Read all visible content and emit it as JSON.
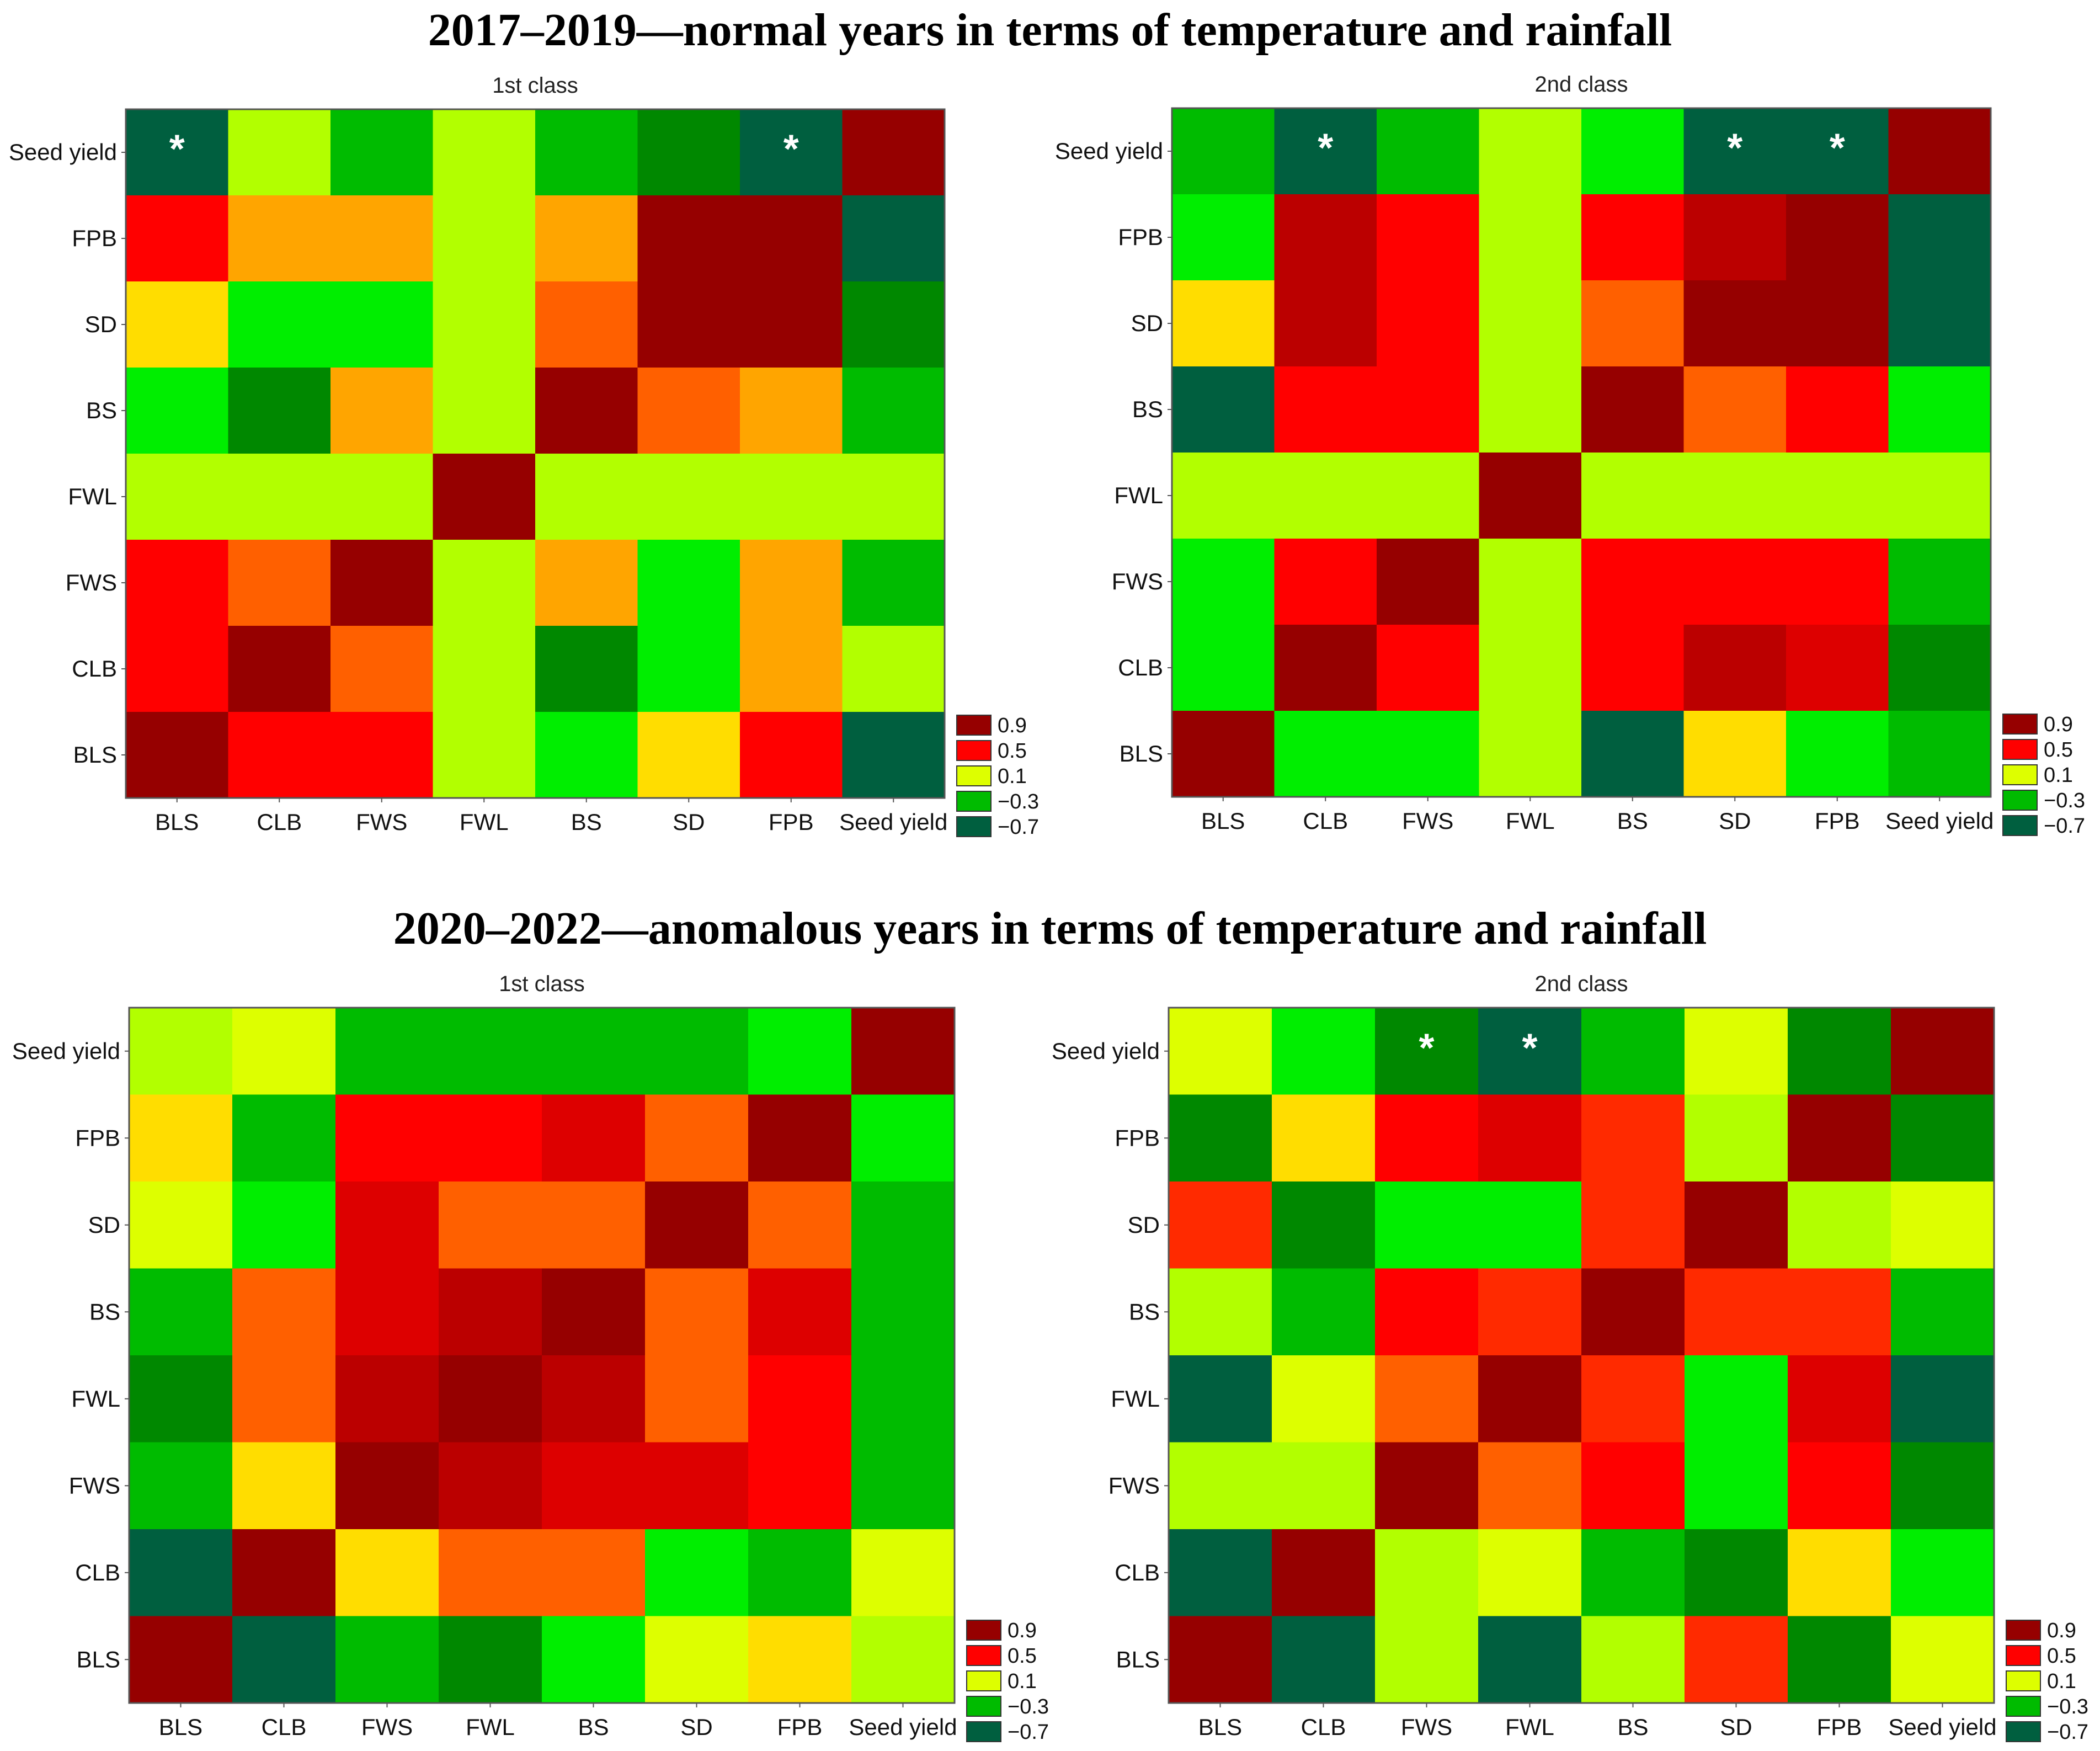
{
  "titles": [
    "2017–2019—normal years in terms of temperature and rainfall",
    "2020–2022—anomalous years in terms of temperature and rainfall"
  ],
  "colors": {
    "-0.7": "#005f3f",
    "-0.5": "#008800",
    "-0.3": "#00bb00",
    "-0.1": "#00ee00",
    "0.1": "#b2ff00",
    "0.2": "#ddff00",
    "0.3": "#ffdd00",
    "0.4": "#ffa500",
    "0.5": "#ff6000",
    "0.6": "#ff2a00",
    "0.7": "#ff0000",
    "0.8": "#dd0000",
    "0.85": "#bb0000",
    "0.9": "#960000"
  },
  "chart_data": [
    {
      "type": "heatmap",
      "title": "1st class",
      "period": "2017–2019",
      "x_labels": [
        "BLS",
        "CLB",
        "FWS",
        "FWL",
        "BS",
        "SD",
        "FPB",
        "Seed yield"
      ],
      "y_labels": [
        "Seed yield",
        "FPB",
        "SD",
        "BS",
        "FWL",
        "FWS",
        "CLB",
        "BLS"
      ],
      "values": [
        [
          -0.7,
          0.1,
          -0.3,
          0.1,
          -0.3,
          -0.5,
          -0.7,
          0.9
        ],
        [
          0.7,
          0.4,
          0.4,
          0.1,
          0.4,
          0.9,
          0.9,
          -0.7
        ],
        [
          0.3,
          -0.1,
          -0.1,
          0.1,
          0.5,
          0.9,
          0.9,
          -0.5
        ],
        [
          -0.1,
          -0.5,
          0.4,
          0.1,
          0.9,
          0.5,
          0.4,
          -0.3
        ],
        [
          0.1,
          0.1,
          0.1,
          0.9,
          0.1,
          0.1,
          0.1,
          0.1
        ],
        [
          0.7,
          0.5,
          0.9,
          0.1,
          0.4,
          -0.1,
          0.4,
          -0.3
        ],
        [
          0.7,
          0.9,
          0.5,
          0.1,
          -0.5,
          -0.1,
          0.4,
          0.1
        ],
        [
          0.9,
          0.7,
          0.7,
          0.1,
          -0.1,
          0.3,
          0.7,
          -0.7
        ]
      ],
      "significant": [
        [
          0,
          0
        ],
        [
          0,
          6
        ]
      ],
      "star_label": "*",
      "legend": [
        "0.9",
        "0.5",
        "0.1",
        "−0.3",
        "−0.7"
      ]
    },
    {
      "type": "heatmap",
      "title": "2nd class",
      "period": "2017–2019",
      "x_labels": [
        "BLS",
        "CLB",
        "FWS",
        "FWL",
        "BS",
        "SD",
        "FPB",
        "Seed yield"
      ],
      "y_labels": [
        "Seed yield",
        "FPB",
        "SD",
        "BS",
        "FWL",
        "FWS",
        "CLB",
        "BLS"
      ],
      "values": [
        [
          -0.3,
          -0.7,
          -0.3,
          0.1,
          -0.1,
          -0.7,
          -0.7,
          0.9
        ],
        [
          -0.1,
          0.85,
          0.7,
          0.1,
          0.7,
          0.85,
          0.9,
          -0.7
        ],
        [
          0.3,
          0.85,
          0.7,
          0.1,
          0.5,
          0.9,
          0.9,
          -0.7
        ],
        [
          -0.7,
          0.7,
          0.7,
          0.1,
          0.9,
          0.5,
          0.7,
          -0.1
        ],
        [
          0.1,
          0.1,
          0.1,
          0.9,
          0.1,
          0.1,
          0.1,
          0.1
        ],
        [
          -0.1,
          0.7,
          0.9,
          0.1,
          0.7,
          0.7,
          0.7,
          -0.3
        ],
        [
          -0.1,
          0.9,
          0.7,
          0.1,
          0.7,
          0.85,
          0.8,
          -0.5
        ],
        [
          0.9,
          -0.1,
          -0.1,
          0.1,
          -0.7,
          0.3,
          -0.1,
          -0.3
        ]
      ],
      "significant": [
        [
          0,
          1
        ],
        [
          0,
          5
        ],
        [
          0,
          6
        ]
      ],
      "star_label": "*",
      "legend": [
        "0.9",
        "0.5",
        "0.1",
        "−0.3",
        "−0.7"
      ]
    },
    {
      "type": "heatmap",
      "title": "1st class",
      "period": "2020–2022",
      "x_labels": [
        "BLS",
        "CLB",
        "FWS",
        "FWL",
        "BS",
        "SD",
        "FPB",
        "Seed yield"
      ],
      "y_labels": [
        "Seed yield",
        "FPB",
        "SD",
        "BS",
        "FWL",
        "FWS",
        "CLB",
        "BLS"
      ],
      "values": [
        [
          0.1,
          0.2,
          -0.3,
          -0.3,
          -0.3,
          -0.3,
          -0.1,
          0.9
        ],
        [
          0.3,
          -0.3,
          0.7,
          0.7,
          0.8,
          0.5,
          0.9,
          -0.1
        ],
        [
          0.2,
          -0.1,
          0.8,
          0.5,
          0.5,
          0.9,
          0.5,
          -0.3
        ],
        [
          -0.3,
          0.5,
          0.8,
          0.85,
          0.9,
          0.5,
          0.8,
          -0.3
        ],
        [
          -0.5,
          0.5,
          0.85,
          0.9,
          0.85,
          0.5,
          0.7,
          -0.3
        ],
        [
          -0.3,
          0.3,
          0.9,
          0.85,
          0.8,
          0.8,
          0.7,
          -0.3
        ],
        [
          -0.7,
          0.9,
          0.3,
          0.5,
          0.5,
          -0.1,
          -0.3,
          0.2
        ],
        [
          0.9,
          -0.7,
          -0.3,
          -0.5,
          -0.1,
          0.2,
          0.3,
          0.1
        ]
      ],
      "significant": [],
      "star_label": "*",
      "legend": [
        "0.9",
        "0.5",
        "0.1",
        "−0.3",
        "−0.7"
      ]
    },
    {
      "type": "heatmap",
      "title": "2nd class",
      "period": "2020–2022",
      "x_labels": [
        "BLS",
        "CLB",
        "FWS",
        "FWL",
        "BS",
        "SD",
        "FPB",
        "Seed yield"
      ],
      "y_labels": [
        "Seed yield",
        "FPB",
        "SD",
        "BS",
        "FWL",
        "FWS",
        "CLB",
        "BLS"
      ],
      "values": [
        [
          0.2,
          -0.1,
          -0.5,
          -0.7,
          -0.3,
          0.2,
          -0.5,
          0.9
        ],
        [
          -0.5,
          0.3,
          0.7,
          0.8,
          0.6,
          0.1,
          0.9,
          -0.5
        ],
        [
          0.6,
          -0.5,
          -0.1,
          -0.1,
          0.6,
          0.9,
          0.1,
          0.2
        ],
        [
          0.1,
          -0.3,
          0.7,
          0.6,
          0.9,
          0.6,
          0.6,
          -0.3
        ],
        [
          -0.7,
          0.2,
          0.5,
          0.9,
          0.6,
          -0.1,
          0.8,
          -0.7
        ],
        [
          0.1,
          0.1,
          0.9,
          0.5,
          0.7,
          -0.1,
          0.7,
          -0.5
        ],
        [
          -0.7,
          0.9,
          0.1,
          0.2,
          -0.3,
          -0.5,
          0.3,
          -0.1
        ],
        [
          0.9,
          -0.7,
          0.1,
          -0.7,
          0.1,
          0.6,
          -0.5,
          0.2
        ]
      ],
      "significant": [
        [
          0,
          2
        ],
        [
          0,
          3
        ]
      ],
      "star_label": "*",
      "legend": [
        "0.9",
        "0.5",
        "0.1",
        "−0.3",
        "−0.7"
      ]
    }
  ]
}
